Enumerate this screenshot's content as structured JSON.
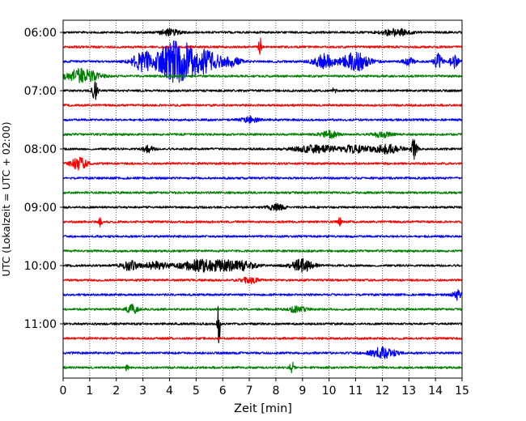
{
  "chart_data": {
    "type": "line",
    "subtype": "seismic-helicorder",
    "title": "",
    "xlabel": "Zeit  [min]",
    "ylabel": "UTC (Lokalzeit = UTC + 02:00)",
    "xlim": [
      0,
      15
    ],
    "x_ticks": [
      "0",
      "1",
      "2",
      "3",
      "4",
      "5",
      "6",
      "7",
      "8",
      "9",
      "10",
      "11",
      "12",
      "13",
      "14",
      "15"
    ],
    "y_ticks": [
      "06:00",
      "07:00",
      "08:00",
      "09:00",
      "10:00",
      "11:00"
    ],
    "grid": "vertical dotted at each minute",
    "trace_colors": [
      "#000000",
      "#ff0000",
      "#0000ff",
      "#008000"
    ],
    "row_interval_minutes": 15,
    "rows": [
      {
        "start": "06:00",
        "color": "#000000",
        "events": [
          [
            4.0,
            0.4,
            1.2
          ],
          [
            12.5,
            0.5,
            1.5
          ]
        ]
      },
      {
        "start": "06:15",
        "color": "#ff0000",
        "events": [
          [
            7.4,
            0.05,
            5.0
          ]
        ]
      },
      {
        "start": "06:30",
        "color": "#0000ff",
        "events": [
          [
            3.0,
            0.4,
            4.0
          ],
          [
            4.1,
            0.6,
            6.5
          ],
          [
            5.0,
            0.9,
            5.5
          ],
          [
            6.4,
            0.3,
            1.5
          ],
          [
            9.8,
            0.4,
            3.0
          ],
          [
            11.0,
            0.5,
            4.0
          ],
          [
            13.0,
            0.2,
            1.4
          ],
          [
            14.1,
            0.15,
            3.5
          ],
          [
            14.7,
            0.15,
            3.0
          ]
        ]
      },
      {
        "start": "06:45",
        "color": "#008000",
        "events": [
          [
            0.7,
            0.6,
            3.0
          ]
        ]
      },
      {
        "start": "07:00",
        "color": "#000000",
        "events": [
          [
            1.2,
            0.1,
            4.0
          ],
          [
            10.2,
            0.05,
            2.5
          ]
        ]
      },
      {
        "start": "07:15",
        "color": "#ff0000",
        "events": []
      },
      {
        "start": "07:30",
        "color": "#0000ff",
        "events": [
          [
            7.0,
            0.3,
            1.3
          ]
        ]
      },
      {
        "start": "07:45",
        "color": "#008000",
        "events": [
          [
            10.0,
            0.3,
            1.5
          ],
          [
            12.0,
            0.3,
            1.4
          ]
        ]
      },
      {
        "start": "08:00",
        "color": "#000000",
        "events": [
          [
            3.2,
            0.2,
            1.4
          ],
          [
            9.5,
            0.8,
            1.4
          ],
          [
            11.0,
            0.5,
            1.6
          ],
          [
            12.2,
            0.5,
            2.0
          ],
          [
            13.2,
            0.1,
            5.0
          ]
        ]
      },
      {
        "start": "08:15",
        "color": "#ff0000",
        "events": [
          [
            0.6,
            0.3,
            2.5
          ]
        ]
      },
      {
        "start": "08:30",
        "color": "#0000ff",
        "events": []
      },
      {
        "start": "08:45",
        "color": "#008000",
        "events": []
      },
      {
        "start": "09:00",
        "color": "#000000",
        "events": [
          [
            8.0,
            0.3,
            1.2
          ]
        ]
      },
      {
        "start": "09:15",
        "color": "#ff0000",
        "events": [
          [
            1.4,
            0.05,
            2.5
          ],
          [
            10.4,
            0.05,
            2.0
          ]
        ]
      },
      {
        "start": "09:30",
        "color": "#0000ff",
        "events": []
      },
      {
        "start": "09:45",
        "color": "#008000",
        "events": []
      },
      {
        "start": "10:00",
        "color": "#000000",
        "events": [
          [
            2.5,
            0.3,
            2.0
          ],
          [
            3.5,
            0.4,
            1.6
          ],
          [
            5.3,
            0.9,
            2.4
          ],
          [
            6.6,
            0.6,
            2.0
          ],
          [
            9.0,
            0.4,
            2.6
          ]
        ]
      },
      {
        "start": "10:15",
        "color": "#ff0000",
        "events": [
          [
            7.0,
            0.3,
            1.4
          ]
        ]
      },
      {
        "start": "10:30",
        "color": "#0000ff",
        "events": [
          [
            14.8,
            0.15,
            2.0
          ]
        ]
      },
      {
        "start": "10:45",
        "color": "#008000",
        "events": [
          [
            2.6,
            0.2,
            2.0
          ],
          [
            8.8,
            0.3,
            1.3
          ]
        ]
      },
      {
        "start": "11:00",
        "color": "#000000",
        "events": [
          [
            5.85,
            0.05,
            10.0
          ]
        ]
      },
      {
        "start": "11:15",
        "color": "#ff0000",
        "events": []
      },
      {
        "start": "11:30",
        "color": "#0000ff",
        "events": [
          [
            12.0,
            0.5,
            2.2
          ]
        ]
      },
      {
        "start": "11:45",
        "color": "#008000",
        "events": [
          [
            2.4,
            0.05,
            2.0
          ],
          [
            8.6,
            0.1,
            2.2
          ]
        ]
      }
    ],
    "event_format": "[minute, duration_min, peak_amplitude_relative]"
  }
}
